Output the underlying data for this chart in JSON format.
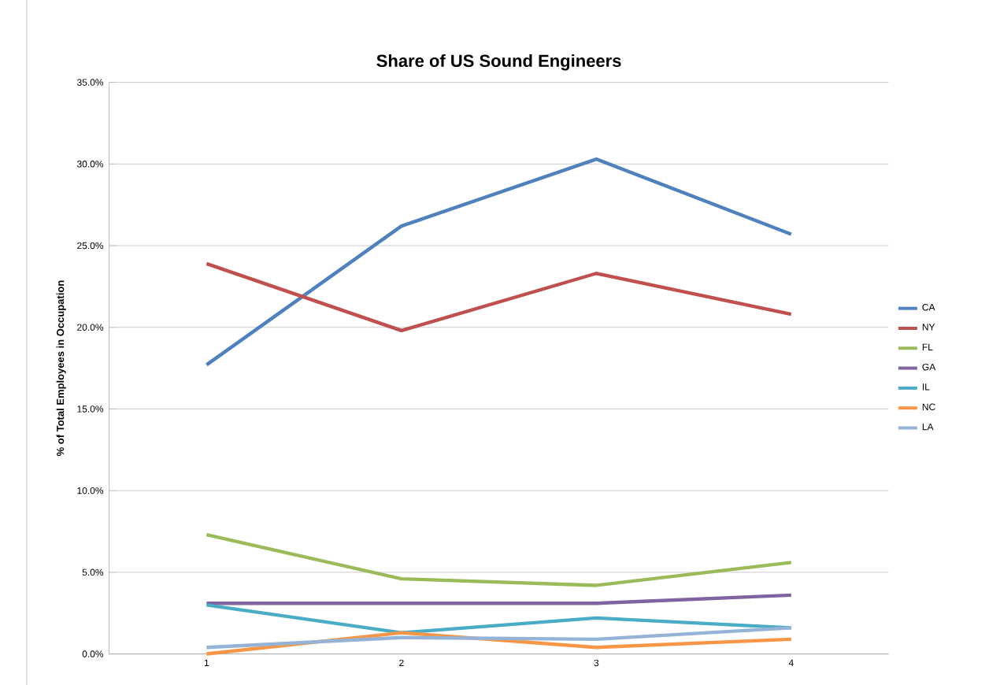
{
  "chart_data": {
    "type": "line",
    "title": "Share of US Sound Engineers",
    "ylabel": "% of Total Employees in Occupation",
    "categories": [
      "1",
      "2",
      "3",
      "4"
    ],
    "series": [
      {
        "name": "CA",
        "color": "#4f81bd",
        "values": [
          17.7,
          26.2,
          30.3,
          25.7
        ]
      },
      {
        "name": "NY",
        "color": "#c0504d",
        "values": [
          23.9,
          19.8,
          23.3,
          20.8
        ]
      },
      {
        "name": "FL",
        "color": "#9bbb59",
        "values": [
          7.3,
          4.6,
          4.2,
          5.6
        ]
      },
      {
        "name": "GA",
        "color": "#8064a2",
        "values": [
          3.1,
          3.1,
          3.1,
          3.6
        ]
      },
      {
        "name": "IL",
        "color": "#4bacc6",
        "values": [
          3.0,
          1.3,
          2.2,
          1.6
        ]
      },
      {
        "name": "NC",
        "color": "#f79646",
        "values": [
          0.0,
          1.3,
          0.4,
          0.9
        ]
      },
      {
        "name": "LA",
        "color": "#95b3d7",
        "values": [
          0.4,
          1.0,
          0.9,
          1.6
        ]
      }
    ],
    "ylim": [
      0,
      35
    ],
    "yticks": [
      {
        "value": 0,
        "label": "0.0%"
      },
      {
        "value": 5,
        "label": "5.0%"
      },
      {
        "value": 10,
        "label": "10.0%"
      },
      {
        "value": 15,
        "label": "15.0%"
      },
      {
        "value": 20,
        "label": "20.0%"
      },
      {
        "value": 25,
        "label": "25.0%"
      },
      {
        "value": 30,
        "label": "30.0%"
      },
      {
        "value": 35,
        "label": "35.0%"
      }
    ],
    "grid": "y",
    "legend": "right",
    "marker": "none",
    "line_style": "solid"
  }
}
